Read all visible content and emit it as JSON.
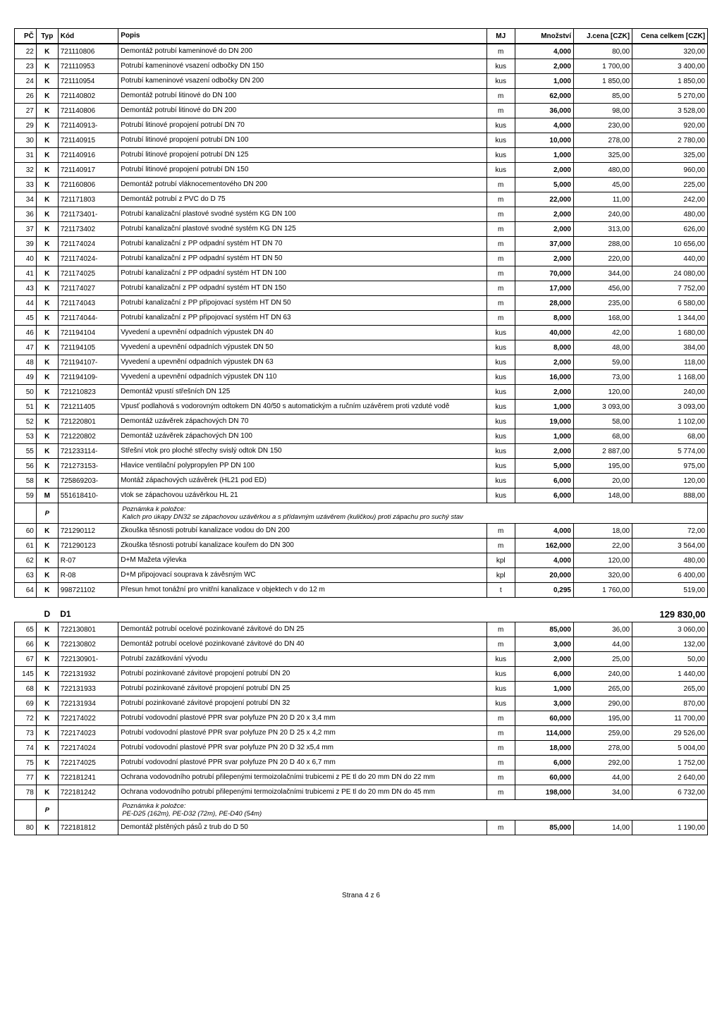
{
  "headers": {
    "pc": "PČ",
    "typ": "Typ",
    "kod": "Kód",
    "popis": "Popis",
    "mj": "MJ",
    "mnozstvi": "Množství",
    "jcena": "J.cena [CZK]",
    "cena": "Cena celkem [CZK]"
  },
  "rows1": [
    {
      "pc": "22",
      "typ": "K",
      "kod": "721110806",
      "pop": "Demontáž potrubí kameninové do DN 200",
      "mj": "m",
      "mn": "4,000",
      "jc": "80,00",
      "cc": "320,00"
    },
    {
      "pc": "23",
      "typ": "K",
      "kod": "721110953",
      "pop": "Potrubí kameninové vsazení odbočky DN 150",
      "mj": "kus",
      "mn": "2,000",
      "jc": "1 700,00",
      "cc": "3 400,00"
    },
    {
      "pc": "24",
      "typ": "K",
      "kod": "721110954",
      "pop": "Potrubí kameninové vsazení odbočky DN 200",
      "mj": "kus",
      "mn": "1,000",
      "jc": "1 850,00",
      "cc": "1 850,00"
    },
    {
      "pc": "26",
      "typ": "K",
      "kod": "721140802",
      "pop": "Demontáž potrubí litinové do DN 100",
      "mj": "m",
      "mn": "62,000",
      "jc": "85,00",
      "cc": "5 270,00"
    },
    {
      "pc": "27",
      "typ": "K",
      "kod": "721140806",
      "pop": "Demontáž potrubí litinové do DN 200",
      "mj": "m",
      "mn": "36,000",
      "jc": "98,00",
      "cc": "3 528,00"
    },
    {
      "pc": "29",
      "typ": "K",
      "kod": "721140913-",
      "pop": "Potrubí litinové propojení potrubí DN 70",
      "mj": "kus",
      "mn": "4,000",
      "jc": "230,00",
      "cc": "920,00"
    },
    {
      "pc": "30",
      "typ": "K",
      "kod": "721140915",
      "pop": "Potrubí litinové propojení potrubí DN 100",
      "mj": "kus",
      "mn": "10,000",
      "jc": "278,00",
      "cc": "2 780,00"
    },
    {
      "pc": "31",
      "typ": "K",
      "kod": "721140916",
      "pop": "Potrubí litinové propojení potrubí DN 125",
      "mj": "kus",
      "mn": "1,000",
      "jc": "325,00",
      "cc": "325,00"
    },
    {
      "pc": "32",
      "typ": "K",
      "kod": "721140917",
      "pop": "Potrubí litinové propojení potrubí DN 150",
      "mj": "kus",
      "mn": "2,000",
      "jc": "480,00",
      "cc": "960,00"
    },
    {
      "pc": "33",
      "typ": "K",
      "kod": "721160806",
      "pop": "Demontáž potrubí vláknocementového DN 200",
      "mj": "m",
      "mn": "5,000",
      "jc": "45,00",
      "cc": "225,00"
    },
    {
      "pc": "34",
      "typ": "K",
      "kod": "721171803",
      "pop": "Demontáž potrubí z PVC do D 75",
      "mj": "m",
      "mn": "22,000",
      "jc": "11,00",
      "cc": "242,00"
    },
    {
      "pc": "36",
      "typ": "K",
      "kod": "721173401-",
      "pop": "Potrubí kanalizační plastové svodné systém KG DN 100",
      "mj": "m",
      "mn": "2,000",
      "jc": "240,00",
      "cc": "480,00"
    },
    {
      "pc": "37",
      "typ": "K",
      "kod": "721173402",
      "pop": "Potrubí kanalizační plastové svodné systém KG DN 125",
      "mj": "m",
      "mn": "2,000",
      "jc": "313,00",
      "cc": "626,00"
    },
    {
      "pc": "39",
      "typ": "K",
      "kod": "721174024",
      "pop": "Potrubí kanalizační z PP odpadní systém HT DN 70",
      "mj": "m",
      "mn": "37,000",
      "jc": "288,00",
      "cc": "10 656,00"
    },
    {
      "pc": "40",
      "typ": "K",
      "kod": "721174024-",
      "pop": "Potrubí kanalizační z PP odpadní systém HT DN 50",
      "mj": "m",
      "mn": "2,000",
      "jc": "220,00",
      "cc": "440,00"
    },
    {
      "pc": "41",
      "typ": "K",
      "kod": "721174025",
      "pop": "Potrubí kanalizační z PP odpadní systém HT DN 100",
      "mj": "m",
      "mn": "70,000",
      "jc": "344,00",
      "cc": "24 080,00"
    },
    {
      "pc": "43",
      "typ": "K",
      "kod": "721174027",
      "pop": "Potrubí kanalizační z PP odpadní systém HT DN 150",
      "mj": "m",
      "mn": "17,000",
      "jc": "456,00",
      "cc": "7 752,00"
    },
    {
      "pc": "44",
      "typ": "K",
      "kod": "721174043",
      "pop": "Potrubí kanalizační z PP připojovací systém HT DN 50",
      "mj": "m",
      "mn": "28,000",
      "jc": "235,00",
      "cc": "6 580,00"
    },
    {
      "pc": "45",
      "typ": "K",
      "kod": "721174044-",
      "pop": "Potrubí kanalizační z PP připojovací systém HT DN 63",
      "mj": "m",
      "mn": "8,000",
      "jc": "168,00",
      "cc": "1 344,00"
    },
    {
      "pc": "46",
      "typ": "K",
      "kod": "721194104",
      "pop": "Vyvedení a upevnění odpadních výpustek DN 40",
      "mj": "kus",
      "mn": "40,000",
      "jc": "42,00",
      "cc": "1 680,00"
    },
    {
      "pc": "47",
      "typ": "K",
      "kod": "721194105",
      "pop": "Vyvedení a upevnění odpadních výpustek DN 50",
      "mj": "kus",
      "mn": "8,000",
      "jc": "48,00",
      "cc": "384,00"
    },
    {
      "pc": "48",
      "typ": "K",
      "kod": "721194107-",
      "pop": "Vyvedení a upevnění odpadních výpustek DN 63",
      "mj": "kus",
      "mn": "2,000",
      "jc": "59,00",
      "cc": "118,00"
    },
    {
      "pc": "49",
      "typ": "K",
      "kod": "721194109-",
      "pop": "Vyvedení a upevnění odpadních výpustek DN 110",
      "mj": "kus",
      "mn": "16,000",
      "jc": "73,00",
      "cc": "1 168,00"
    },
    {
      "pc": "50",
      "typ": "K",
      "kod": "721210823",
      "pop": "Demontáž vpustí střešních DN 125",
      "mj": "kus",
      "mn": "2,000",
      "jc": "120,00",
      "cc": "240,00"
    },
    {
      "pc": "51",
      "typ": "K",
      "kod": "721211405",
      "pop": "Vpusť podlahová s vodorovným odtokem DN 40/50 s automatickým a ručním uzávěrem proti vzduté vodě",
      "mj": "kus",
      "mn": "1,000",
      "jc": "3 093,00",
      "cc": "3 093,00"
    },
    {
      "pc": "52",
      "typ": "K",
      "kod": "721220801",
      "pop": "Demontáž uzávěrek zápachových DN 70",
      "mj": "kus",
      "mn": "19,000",
      "jc": "58,00",
      "cc": "1 102,00"
    },
    {
      "pc": "53",
      "typ": "K",
      "kod": "721220802",
      "pop": "Demontáž uzávěrek zápachových DN 100",
      "mj": "kus",
      "mn": "1,000",
      "jc": "68,00",
      "cc": "68,00"
    },
    {
      "pc": "55",
      "typ": "K",
      "kod": "721233114-",
      "pop": "Střešní vtok pro ploché střechy svislý odtok DN 150",
      "mj": "kus",
      "mn": "2,000",
      "jc": "2 887,00",
      "cc": "5 774,00"
    },
    {
      "pc": "56",
      "typ": "K",
      "kod": "721273153-",
      "pop": "Hlavice ventilační polypropylen PP DN 100",
      "mj": "kus",
      "mn": "5,000",
      "jc": "195,00",
      "cc": "975,00"
    },
    {
      "pc": "58",
      "typ": "K",
      "kod": "725869203-",
      "pop": "Montáž zápachových uzávěrek (HL21 pod ED)",
      "mj": "kus",
      "mn": "6,000",
      "jc": "20,00",
      "cc": "120,00"
    },
    {
      "pc": "59",
      "typ": "M",
      "kod": "551618410-",
      "pop": "vtok se zápachovou uzávěrkou HL 21",
      "mj": "kus",
      "mn": "6,000",
      "jc": "148,00",
      "cc": "888,00"
    }
  ],
  "note1": {
    "p": "P",
    "text": "Poznámka k položce:\nKalich pro úkapy DN32 se zápachovou uzávěrkou a s přídavným uzávěrem (kuličkou) proti zápachu pro suchý stav"
  },
  "rows2": [
    {
      "pc": "60",
      "typ": "K",
      "kod": "721290112",
      "pop": "Zkouška těsnosti potrubí kanalizace vodou do DN 200",
      "mj": "m",
      "mn": "4,000",
      "jc": "18,00",
      "cc": "72,00"
    },
    {
      "pc": "61",
      "typ": "K",
      "kod": "721290123",
      "pop": "Zkouška těsnosti potrubí kanalizace kouřem do DN 300",
      "mj": "m",
      "mn": "162,000",
      "jc": "22,00",
      "cc": "3 564,00"
    },
    {
      "pc": "62",
      "typ": "K",
      "kod": "R-07",
      "pop": "D+M Mažeta výlevka",
      "mj": "kpl",
      "mn": "4,000",
      "jc": "120,00",
      "cc": "480,00"
    },
    {
      "pc": "63",
      "typ": "K",
      "kod": "R-08",
      "pop": "D+M připojovací souprava k závěsným WC",
      "mj": "kpl",
      "mn": "20,000",
      "jc": "320,00",
      "cc": "6 400,00"
    },
    {
      "pc": "64",
      "typ": "K",
      "kod": "998721102",
      "pop": "Přesun hmot tonážní pro vnitřní kanalizace v objektech v do 12 m",
      "mj": "t",
      "mn": "0,295",
      "jc": "1 760,00",
      "cc": "519,00"
    }
  ],
  "section": {
    "typ": "D",
    "kod": "D1",
    "cc": "129 830,00"
  },
  "rows3": [
    {
      "pc": "65",
      "typ": "K",
      "kod": "722130801",
      "pop": "Demontáž potrubí ocelové pozinkované závitové do DN 25",
      "mj": "m",
      "mn": "85,000",
      "jc": "36,00",
      "cc": "3 060,00"
    },
    {
      "pc": "66",
      "typ": "K",
      "kod": "722130802",
      "pop": "Demontáž potrubí ocelové pozinkované závitové do DN 40",
      "mj": "m",
      "mn": "3,000",
      "jc": "44,00",
      "cc": "132,00"
    },
    {
      "pc": "67",
      "typ": "K",
      "kod": "722130901-",
      "pop": "Potrubí zazátkování vývodu",
      "mj": "kus",
      "mn": "2,000",
      "jc": "25,00",
      "cc": "50,00"
    },
    {
      "pc": "145",
      "typ": "K",
      "kod": "722131932",
      "pop": "Potrubí pozinkované závitové propojení potrubí DN 20",
      "mj": "kus",
      "mn": "6,000",
      "jc": "240,00",
      "cc": "1 440,00"
    },
    {
      "pc": "68",
      "typ": "K",
      "kod": "722131933",
      "pop": "Potrubí pozinkované závitové propojení potrubí DN 25",
      "mj": "kus",
      "mn": "1,000",
      "jc": "265,00",
      "cc": "265,00"
    },
    {
      "pc": "69",
      "typ": "K",
      "kod": "722131934",
      "pop": "Potrubí pozinkované závitové propojení potrubí DN 32",
      "mj": "kus",
      "mn": "3,000",
      "jc": "290,00",
      "cc": "870,00"
    },
    {
      "pc": "72",
      "typ": "K",
      "kod": "722174022",
      "pop": "Potrubí vodovodní plastové PPR svar polyfuze PN 20 D 20 x 3,4 mm",
      "mj": "m",
      "mn": "60,000",
      "jc": "195,00",
      "cc": "11 700,00"
    },
    {
      "pc": "73",
      "typ": "K",
      "kod": "722174023",
      "pop": "Potrubí vodovodní plastové PPR svar polyfuze PN 20 D 25 x 4,2 mm",
      "mj": "m",
      "mn": "114,000",
      "jc": "259,00",
      "cc": "29 526,00"
    },
    {
      "pc": "74",
      "typ": "K",
      "kod": "722174024",
      "pop": "Potrubí vodovodní plastové PPR svar polyfuze PN 20 D 32 x5,4 mm",
      "mj": "m",
      "mn": "18,000",
      "jc": "278,00",
      "cc": "5 004,00"
    },
    {
      "pc": "75",
      "typ": "K",
      "kod": "722174025",
      "pop": "Potrubí vodovodní plastové PPR svar polyfuze PN 20 D 40 x 6,7 mm",
      "mj": "m",
      "mn": "6,000",
      "jc": "292,00",
      "cc": "1 752,00"
    },
    {
      "pc": "77",
      "typ": "K",
      "kod": "722181241",
      "pop": "Ochrana vodovodního potrubí přilepenými termoizolačními trubicemi z PE tl do 20 mm DN do 22 mm",
      "mj": "m",
      "mn": "60,000",
      "jc": "44,00",
      "cc": "2 640,00"
    },
    {
      "pc": "78",
      "typ": "K",
      "kod": "722181242",
      "pop": "Ochrana vodovodního potrubí přilepenými termoizolačními trubicemi z PE tl do 20 mm DN do 45 mm",
      "mj": "m",
      "mn": "198,000",
      "jc": "34,00",
      "cc": "6 732,00"
    }
  ],
  "note2": {
    "p": "P",
    "text": "Poznámka k položce:\nPE-D25 (162m), PE-D32 (72m), PE-D40 (54m)"
  },
  "rows4": [
    {
      "pc": "80",
      "typ": "K",
      "kod": "722181812",
      "pop": "Demontáž plstěných pásů z trub do D 50",
      "mj": "m",
      "mn": "85,000",
      "jc": "14,00",
      "cc": "1 190,00"
    }
  ],
  "footer": "Strana 4 z 6"
}
